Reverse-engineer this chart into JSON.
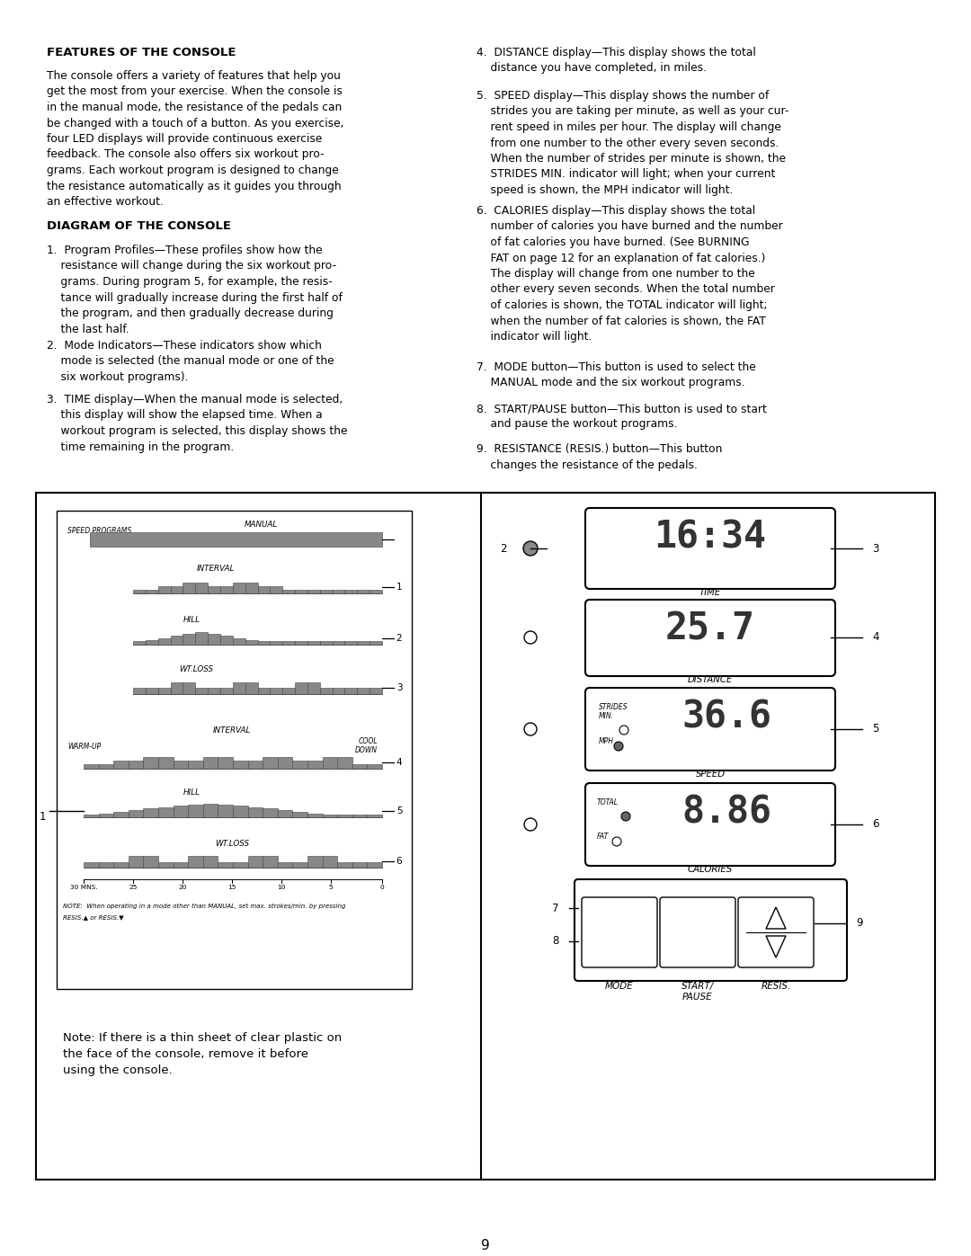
{
  "page_number": "9",
  "title_left": "FEATURES OF THE CONSOLE",
  "title_diagram": "DIAGRAM OF THE CONSOLE",
  "em_dash": "—",
  "triangle_up": "▲",
  "triangle_down": "▼",
  "body_text_left": "The console offers a variety of features that help you\nget the most from your exercise. When the console is\nin the manual mode, the resistance of the pedals can\nbe changed with a touch of a button. As you exercise,\nfour LED displays will provide continuous exercise\nfeedback. The console also offers six workout pro-\ngrams. Each workout program is designed to change\nthe resistance automatically as it guides you through\nan effective workout.",
  "note_text": "Note: If there is a thin sheet of clear plastic on\nthe face of the console, remove it before\nusing the console.",
  "footnote_line1": "NOTE:  When operating in a mode other than MANUAL, set max. strokes/min. by pressing",
  "footnote_line2": "RESIS.",
  "time_display": "16:34",
  "dist_display": "25.7",
  "speed_display": "36.6",
  "cal_display": "8.86",
  "bg_color": "#ffffff",
  "bar_color": "#888888",
  "bar_edge_color": "#444444",
  "box_edge_color": "#000000",
  "text_color": "#000000",
  "display_text_color": "#333333"
}
